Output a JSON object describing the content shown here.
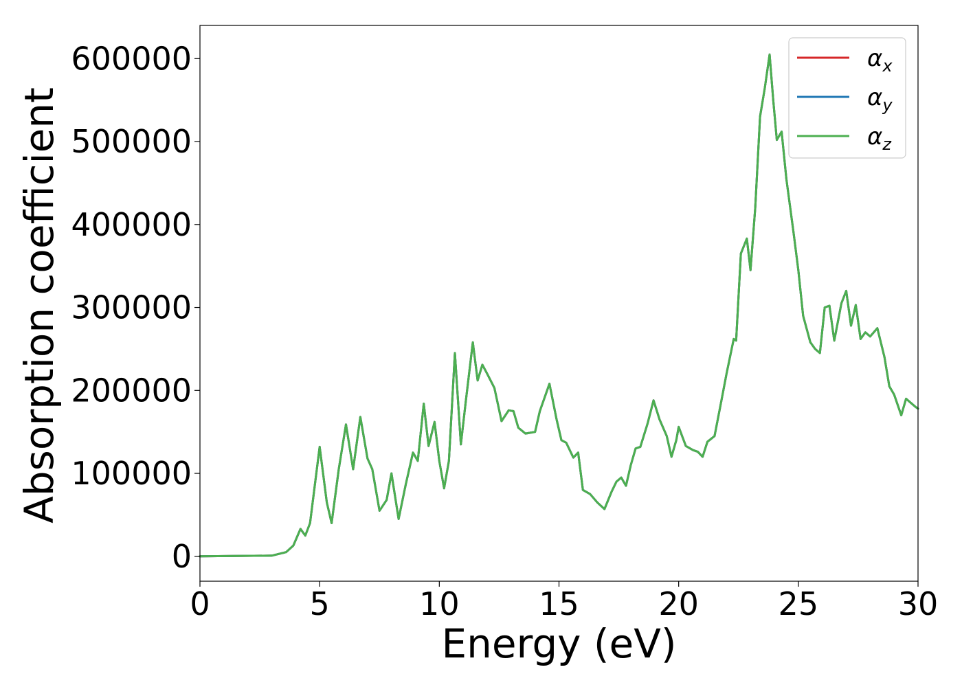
{
  "chart_data": {
    "type": "line",
    "title": "",
    "xlabel": "Energy (eV)",
    "ylabel": "Absorption coefficient",
    "xlim": [
      0,
      30
    ],
    "ylim": [
      -30000,
      640000
    ],
    "xticks": [
      0,
      5,
      10,
      15,
      20,
      25,
      30
    ],
    "xtick_labels": [
      "0",
      "5",
      "10",
      "15",
      "20",
      "25",
      "30"
    ],
    "yticks": [
      0,
      100000,
      200000,
      300000,
      400000,
      500000,
      600000
    ],
    "ytick_labels": [
      "0",
      "100000",
      "200000",
      "300000",
      "400000",
      "500000",
      "600000"
    ],
    "grid": false,
    "legend_position": "top-right",
    "series": [
      {
        "name": "α_x",
        "name_base": "α",
        "name_sub": "x",
        "color": "#d62728"
      },
      {
        "name": "α_y",
        "name_base": "α",
        "name_sub": "y",
        "color": "#1f77b4"
      },
      {
        "name": "α_z",
        "name_base": "α",
        "name_sub": "z",
        "color": "#4caf50"
      }
    ],
    "x": [
      0,
      3,
      3.6,
      3.9,
      4.2,
      4.4,
      4.6,
      5.0,
      5.3,
      5.5,
      5.8,
      6.1,
      6.4,
      6.7,
      7.0,
      7.2,
      7.5,
      7.8,
      8.0,
      8.3,
      8.6,
      8.9,
      9.1,
      9.35,
      9.55,
      9.8,
      10.0,
      10.2,
      10.4,
      10.65,
      10.9,
      11.1,
      11.4,
      11.6,
      11.8,
      12.0,
      12.3,
      12.6,
      12.9,
      13.1,
      13.3,
      13.6,
      13.8,
      14.0,
      14.2,
      14.6,
      14.9,
      15.1,
      15.3,
      15.6,
      15.8,
      16.0,
      16.3,
      16.6,
      16.9,
      17.2,
      17.4,
      17.6,
      17.8,
      18.0,
      18.2,
      18.4,
      18.7,
      18.95,
      19.2,
      19.5,
      19.7,
      19.9,
      20.0,
      20.3,
      20.6,
      20.8,
      21.0,
      21.2,
      21.5,
      21.8,
      22.0,
      22.3,
      22.4,
      22.6,
      22.85,
      23.0,
      23.2,
      23.4,
      23.6,
      23.8,
      23.95,
      24.1,
      24.3,
      24.5,
      24.8,
      25.0,
      25.2,
      25.5,
      25.7,
      25.9,
      26.1,
      26.3,
      26.5,
      26.8,
      27.0,
      27.2,
      27.4,
      27.6,
      27.8,
      28.0,
      28.3,
      28.6,
      28.8,
      29.0,
      29.3,
      29.5,
      29.7,
      29.9,
      30.0
    ],
    "y": [
      0,
      800,
      5000,
      13000,
      33000,
      25000,
      40000,
      132000,
      65000,
      40000,
      105000,
      159000,
      105000,
      168000,
      118000,
      105000,
      55000,
      68000,
      100000,
      45000,
      87000,
      125000,
      115000,
      184000,
      133000,
      162000,
      115000,
      82000,
      115000,
      245000,
      135000,
      185000,
      258000,
      212000,
      231000,
      220000,
      203000,
      163000,
      176000,
      175000,
      155000,
      148000,
      149000,
      150000,
      175000,
      208000,
      165000,
      140000,
      137000,
      119000,
      125000,
      80000,
      75000,
      65000,
      57000,
      78000,
      90000,
      95000,
      85000,
      110000,
      130000,
      132000,
      160000,
      188000,
      165000,
      145000,
      120000,
      140000,
      156000,
      133000,
      128000,
      126000,
      120000,
      138000,
      145000,
      190000,
      220000,
      262000,
      260000,
      365000,
      383000,
      345000,
      420000,
      530000,
      565000,
      605000,
      550000,
      502000,
      512000,
      455000,
      390000,
      345000,
      290000,
      258000,
      250000,
      245000,
      300000,
      302000,
      260000,
      305000,
      320000,
      278000,
      303000,
      262000,
      270000,
      265000,
      275000,
      240000,
      205000,
      195000,
      170000,
      190000,
      185000,
      180000,
      178000
    ]
  }
}
